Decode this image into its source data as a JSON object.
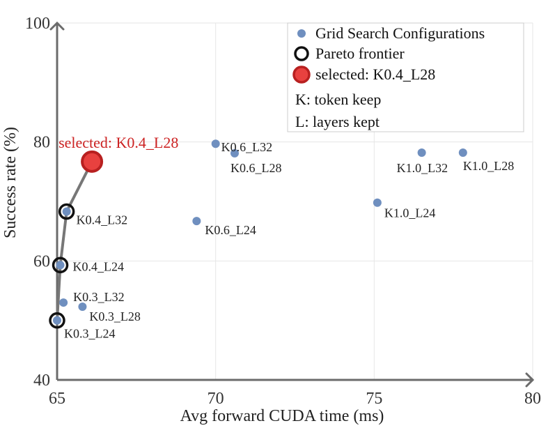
{
  "chart_data": {
    "type": "scatter",
    "title": "",
    "xlabel": "Avg forward CUDA time (ms)",
    "ylabel": "Success rate (%)",
    "xlim": [
      65,
      80
    ],
    "ylim": [
      40,
      100
    ],
    "xticks": [
      65,
      70,
      75,
      80
    ],
    "yticks": [
      40,
      60,
      80,
      100
    ],
    "x_tick_labels": [
      "65",
      "70",
      "75",
      "80"
    ],
    "y_tick_labels": [
      "40",
      "60",
      "80",
      "100"
    ],
    "grid": true,
    "legend_position": "top-right",
    "legend": [
      {
        "label": "Grid Search Configurations",
        "marker": "dot"
      },
      {
        "label": "Pareto frontier",
        "marker": "ring"
      },
      {
        "label": "selected: K0.4_L28",
        "marker": "selected"
      },
      {
        "label": "K: token keep",
        "marker": "none"
      },
      {
        "label": "L: layers kept",
        "marker": "none"
      }
    ],
    "series": [
      {
        "name": "Grid Search Configurations",
        "color": "#6f8fbf",
        "points": [
          {
            "x": 65.0,
            "y": 50.0,
            "label": "K0.3_L24"
          },
          {
            "x": 65.2,
            "y": 53.0,
            "label": "K0.3_L32"
          },
          {
            "x": 65.8,
            "y": 52.3,
            "label": "K0.3_L28"
          },
          {
            "x": 65.1,
            "y": 59.3,
            "label": "K0.4_L24"
          },
          {
            "x": 65.3,
            "y": 68.3,
            "label": "K0.4_L32"
          },
          {
            "x": 66.1,
            "y": 76.7,
            "label": "K0.4_L28"
          },
          {
            "x": 69.4,
            "y": 66.7,
            "label": "K0.6_L24"
          },
          {
            "x": 70.0,
            "y": 79.7,
            "label": "K0.6_L32"
          },
          {
            "x": 70.6,
            "y": 78.1,
            "label": "K0.6_L28"
          },
          {
            "x": 75.1,
            "y": 69.8,
            "label": "K1.0_L24"
          },
          {
            "x": 76.5,
            "y": 78.2,
            "label": "K1.0_L32"
          },
          {
            "x": 77.8,
            "y": 78.2,
            "label": "K1.0_L28"
          }
        ]
      },
      {
        "name": "Pareto frontier",
        "color": "#111111",
        "line_color": "#777777",
        "points": [
          {
            "x": 65.0,
            "y": 50.0
          },
          {
            "x": 65.1,
            "y": 59.3
          },
          {
            "x": 65.3,
            "y": 68.3
          },
          {
            "x": 66.1,
            "y": 76.7
          }
        ]
      }
    ],
    "selected": {
      "x": 66.1,
      "y": 76.7,
      "label": "selected: K0.4_L28",
      "color": "#e8413f",
      "label_color": "#cc2222"
    }
  }
}
